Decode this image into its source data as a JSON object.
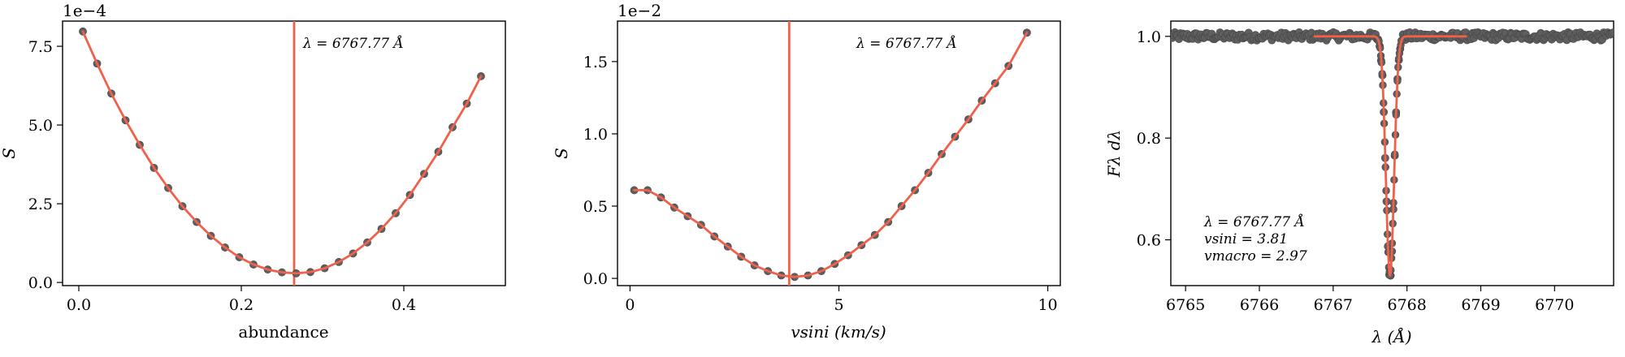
{
  "colors": {
    "model": "#f0604a",
    "points": "#5f5f5f",
    "axes": "#000000"
  },
  "chart_data": [
    {
      "type": "scatter",
      "title": "",
      "xlabel": "abundance",
      "ylabel": "S",
      "offset_label": "1e−4",
      "xlim": [
        -0.02,
        0.525
      ],
      "ylim": [
        -0.1,
        8.3
      ],
      "x_ticks": [
        0.0,
        0.2,
        0.4
      ],
      "x_tick_labels": [
        "0.0",
        "0.2",
        "0.4"
      ],
      "y_ticks": [
        0.0,
        2.5,
        5.0,
        7.5
      ],
      "y_tick_labels": [
        "0.0",
        "2.5",
        "5.0",
        "7.5"
      ],
      "vline": 0.265,
      "annotation": [
        "λ = 6767.77 Å"
      ],
      "grid": false,
      "series": [
        {
          "x": [
            0.005,
            0.0225,
            0.04,
            0.0575,
            0.075,
            0.0925,
            0.11,
            0.1275,
            0.145,
            0.1625,
            0.18,
            0.1975,
            0.215,
            0.2325,
            0.25,
            0.2675,
            0.285,
            0.3025,
            0.32,
            0.3375,
            0.355,
            0.3725,
            0.39,
            0.4075,
            0.425,
            0.4425,
            0.46,
            0.4775,
            0.495
          ],
          "y": [
            7.97,
            6.95,
            6.0,
            5.15,
            4.37,
            3.64,
            3.0,
            2.42,
            1.92,
            1.48,
            1.11,
            0.8,
            0.57,
            0.41,
            0.32,
            0.29,
            0.33,
            0.45,
            0.65,
            0.92,
            1.27,
            1.7,
            2.2,
            2.78,
            3.45,
            4.15,
            4.93,
            5.68,
            6.55
          ]
        }
      ]
    },
    {
      "type": "scatter",
      "title": "",
      "xlabel": "vsini (km/s)",
      "ylabel": "S",
      "offset_label": "1e−2",
      "xlim": [
        -0.3,
        10.3
      ],
      "ylim": [
        -0.05,
        1.78
      ],
      "x_ticks": [
        0,
        5,
        10
      ],
      "x_tick_labels": [
        "0",
        "5",
        "10"
      ],
      "y_ticks": [
        0.0,
        0.5,
        1.0,
        1.5
      ],
      "y_tick_labels": [
        "0.0",
        "0.5",
        "1.0",
        "1.5"
      ],
      "vline": 3.81,
      "annotation": [
        "λ = 6767.77 Å"
      ],
      "grid": false,
      "series": [
        {
          "x": [
            0.1,
            0.42,
            0.74,
            1.06,
            1.38,
            1.7,
            2.02,
            2.34,
            2.66,
            2.98,
            3.3,
            3.62,
            3.94,
            4.26,
            4.58,
            4.9,
            5.22,
            5.54,
            5.86,
            6.18,
            6.5,
            6.82,
            7.14,
            7.46,
            7.78,
            8.1,
            8.42,
            8.74,
            9.06,
            9.5
          ],
          "y": [
            0.61,
            0.61,
            0.56,
            0.49,
            0.43,
            0.37,
            0.29,
            0.22,
            0.15,
            0.09,
            0.05,
            0.02,
            0.01,
            0.02,
            0.05,
            0.1,
            0.16,
            0.23,
            0.3,
            0.39,
            0.5,
            0.61,
            0.73,
            0.86,
            0.98,
            1.1,
            1.23,
            1.35,
            1.47,
            1.7
          ]
        }
      ]
    },
    {
      "type": "line",
      "title": "",
      "xlabel": "λ (Å)",
      "ylabel": "Fλ dλ",
      "xlim": [
        6764.8,
        6770.8
      ],
      "ylim": [
        0.51,
        1.03
      ],
      "x_ticks": [
        6765,
        6766,
        6767,
        6768,
        6769,
        6770
      ],
      "x_tick_labels": [
        "6765",
        "6766",
        "6767",
        "6768",
        "6769",
        "6770"
      ],
      "y_ticks": [
        0.6,
        0.8,
        1.0
      ],
      "y_tick_labels": [
        "0.6",
        "0.8",
        "1.0"
      ],
      "annotation": [
        "λ = 6767.77 Å",
        "vsini = 3.81",
        "vmacro = 2.97"
      ],
      "grid": false,
      "line_center": 6767.77,
      "line_depth": 0.47,
      "continuum": 1.0,
      "model_range": [
        6766.75,
        6768.8
      ],
      "observed_range": [
        6764.8,
        6770.8
      ]
    }
  ]
}
